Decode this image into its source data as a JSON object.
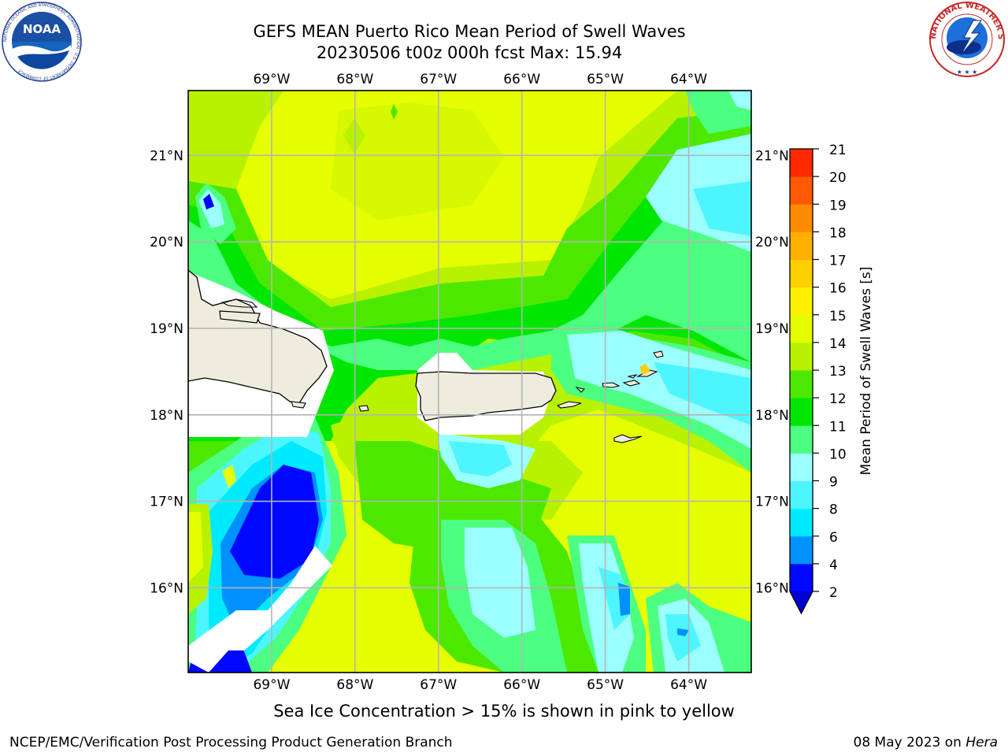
{
  "header": {
    "title_line1": "GEFS MEAN Puerto Rico Mean Period of Swell Waves",
    "title_line2": "20230506 t00z 000h fcst   Max: 15.94"
  },
  "logos": {
    "left": {
      "icon": "noaa-logo",
      "text": "NOAA",
      "ring_text": "NATIONAL OCEANIC AND ATMOSPHERIC ADMINISTRATION · U.S. DEPARTMENT OF COMMERCE"
    },
    "right": {
      "icon": "nws-logo",
      "ring_text": "NATIONAL WEATHER SERVICE"
    }
  },
  "map": {
    "lon_ticks": [
      "69°W",
      "68°W",
      "67°W",
      "66°W",
      "65°W",
      "64°W"
    ],
    "lat_ticks": [
      "21°N",
      "20°N",
      "19°N",
      "18°N",
      "17°N",
      "16°N"
    ],
    "lon_values": [
      -69,
      -68,
      -67,
      -66,
      -65,
      -64
    ],
    "lat_values": [
      21,
      20,
      19,
      18,
      17,
      16
    ],
    "extent": {
      "lon_min": -70,
      "lon_max": -63.25,
      "lat_min": 15.02,
      "lat_max": 21.75
    },
    "colors": {
      "land": "#eeecdc",
      "no_data": "#ffffff",
      "grid": "#b4b4b4",
      "coast": "#000000"
    }
  },
  "colorbar": {
    "label": "Mean Period of Swell Waves [s]",
    "ticks": [
      "21",
      "20",
      "19",
      "18",
      "17",
      "16",
      "15",
      "14",
      "13",
      "12",
      "11",
      "10",
      "9",
      "8",
      "6",
      "4",
      "2"
    ],
    "levels": [
      2,
      4,
      6,
      8,
      9,
      10,
      11,
      12,
      13,
      14,
      15,
      16,
      17,
      18,
      19,
      20,
      21
    ],
    "colors": [
      "#0007ff",
      "#0091ff",
      "#00eaff",
      "#4df6ff",
      "#9bffff",
      "#4dff80",
      "#00e600",
      "#4de800",
      "#b8f200",
      "#e6ff00",
      "#fff000",
      "#ffd000",
      "#ffb000",
      "#ff8c00",
      "#ff5a00",
      "#ff2a00",
      "#ff0000"
    ],
    "extend_color": "#0000d4"
  },
  "caption": "Sea Ice Concentration > 15% is shown in pink to yellow",
  "footer": {
    "left": "NCEP/EMC/Verification Post Processing Product Generation Branch",
    "date": "08 May 2023 on",
    "host": "Hera"
  }
}
